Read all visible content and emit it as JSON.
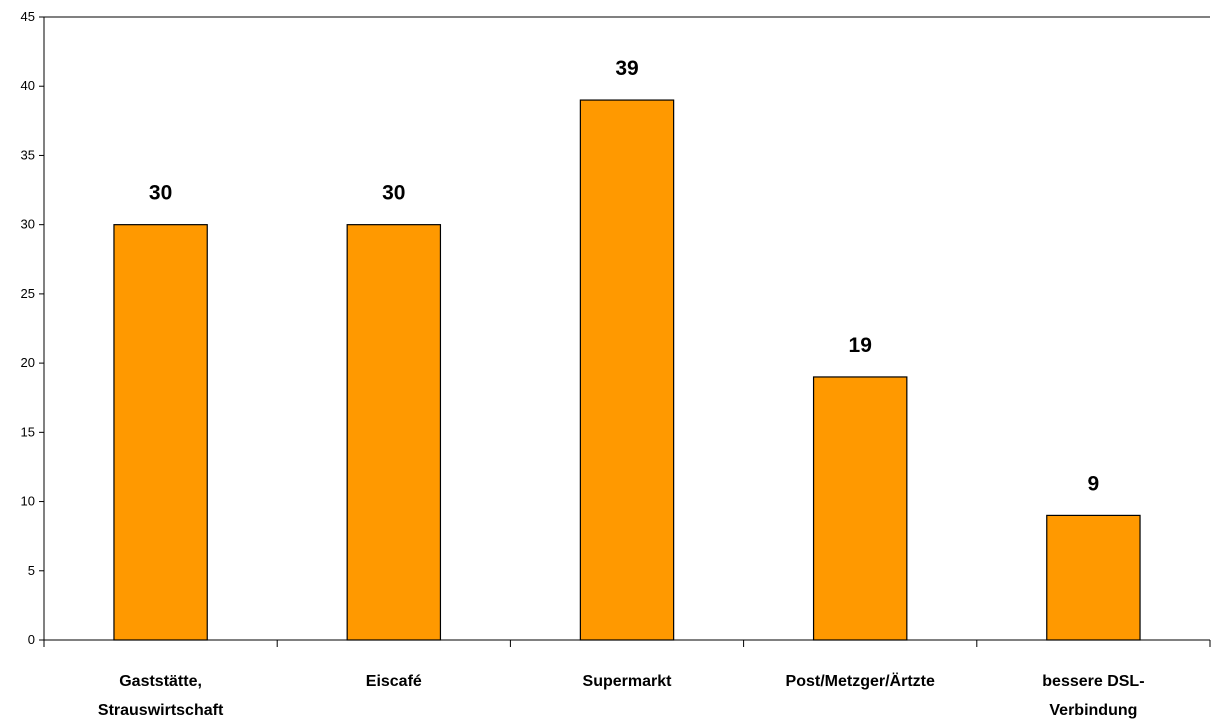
{
  "chart_data": {
    "type": "bar",
    "title": "",
    "xlabel": "",
    "ylabel": "",
    "categories": [
      [
        "Gaststätte,",
        "Strauswirtschaft"
      ],
      [
        "Eiscafé"
      ],
      [
        "Supermarkt"
      ],
      [
        "Post/Metzger/Ärtzte"
      ],
      [
        "bessere DSL-",
        "Verbindung"
      ]
    ],
    "values": [
      30,
      30,
      39,
      19,
      9
    ],
    "ylim": [
      0,
      45
    ],
    "yticks": [
      0,
      5,
      10,
      15,
      20,
      25,
      30,
      35,
      40,
      45
    ],
    "grid": false,
    "legend": "none",
    "bar_color": "#FF9900",
    "bar_edge_color": "#000000"
  }
}
